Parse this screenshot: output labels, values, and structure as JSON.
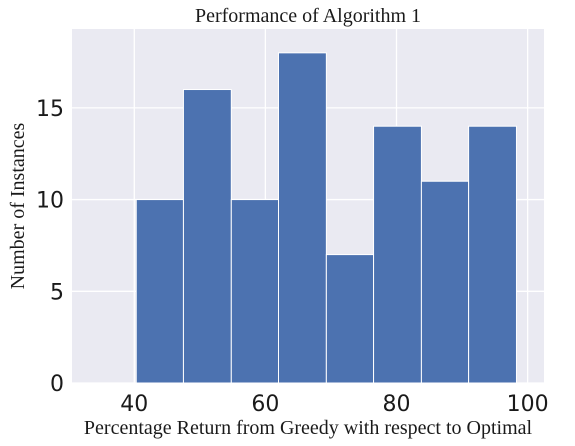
{
  "chart_data": {
    "type": "bar",
    "title": "Performance of Algorithm 1",
    "xlabel": "Percentage Return from Greedy with respect to Optimal",
    "ylabel": "Number of Instances",
    "xlim": [
      30.5,
      102.5
    ],
    "ylim": [
      0,
      19.3
    ],
    "x_ticks": [
      40,
      60,
      80,
      100
    ],
    "y_ticks": [
      0,
      5,
      10,
      15
    ],
    "bins": [
      {
        "start": 40.3,
        "end": 47.5,
        "value": 10
      },
      {
        "start": 47.5,
        "end": 54.8,
        "value": 16
      },
      {
        "start": 54.8,
        "end": 62.0,
        "value": 10
      },
      {
        "start": 62.0,
        "end": 69.3,
        "value": 18
      },
      {
        "start": 69.3,
        "end": 76.5,
        "value": 7
      },
      {
        "start": 76.5,
        "end": 83.8,
        "value": 14
      },
      {
        "start": 83.8,
        "end": 91.0,
        "value": 11
      },
      {
        "start": 91.0,
        "end": 98.3,
        "value": 14
      }
    ],
    "grid": true,
    "bar_color": "#4c72b0",
    "background_color": "#eaeaf2",
    "grid_color": "#ffffff"
  }
}
